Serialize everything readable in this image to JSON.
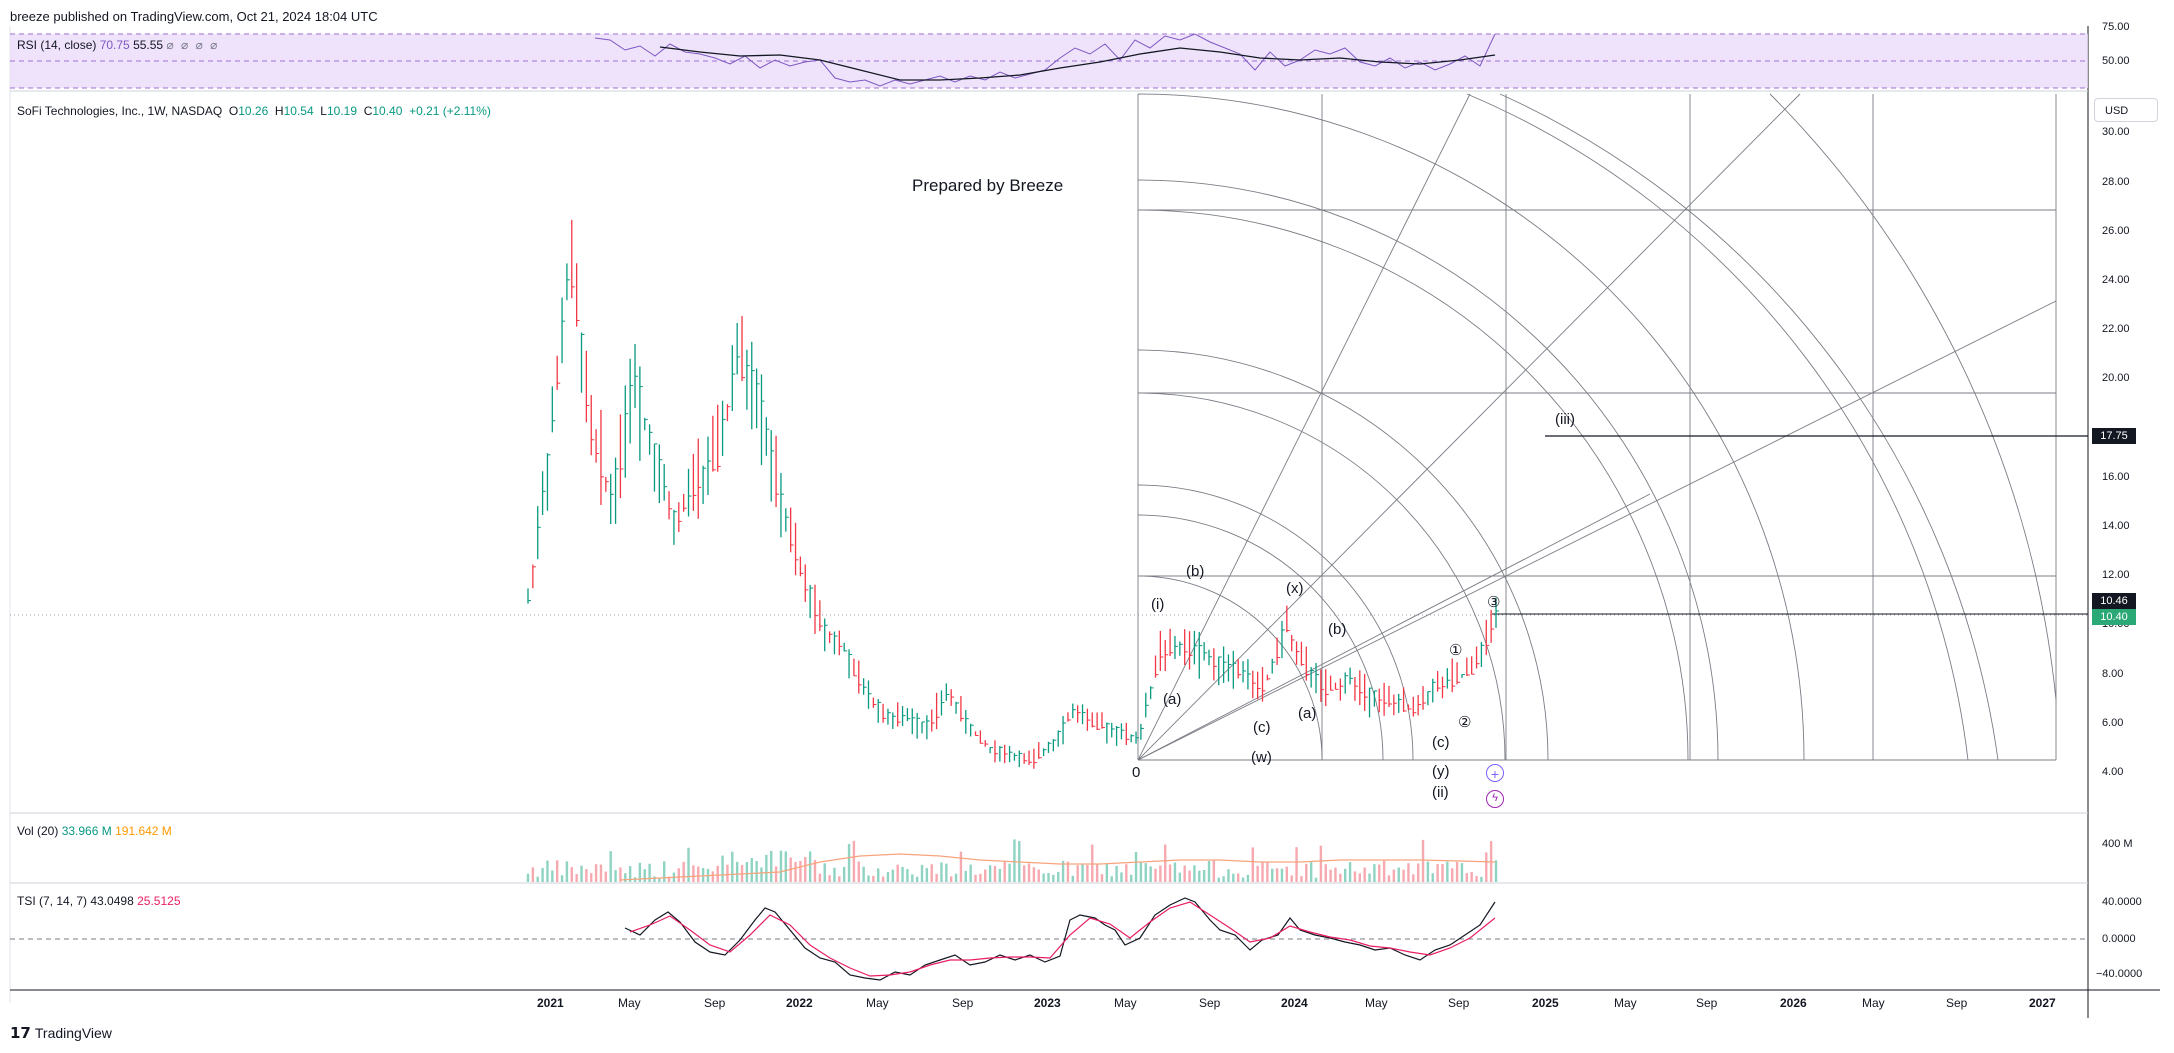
{
  "header": {
    "publisher": "breeze published on TradingView.com, Oct 21, 2024 18:04 UTC"
  },
  "rsi": {
    "label": "RSI (14, close)",
    "value1": "70.75",
    "value2": "55.55",
    "icons": "⌀ ⌀ ⌀ ⌀",
    "axis": [
      "75.00",
      "50.00"
    ]
  },
  "price": {
    "symbol": "SoFi Technologies, Inc., 1W, NASDAQ",
    "o_label": "O",
    "o_val": "10.26",
    "h_label": "H",
    "h_val": "10.54",
    "l_label": "L",
    "l_val": "10.19",
    "c_label": "C",
    "c_val": "10.40",
    "chg": "+0.21 (+2.11%)",
    "currency": "USD",
    "badge_target": "17.75",
    "badge_last": "10.46",
    "badge_close": "10.40",
    "note": "Prepared by Breeze",
    "origin_label": "0"
  },
  "volume": {
    "label": "Vol (20)",
    "v1": "33.966 M",
    "v2": "191.642 M",
    "axis": "400 M"
  },
  "tsi": {
    "label": "TSI (7, 14, 7)",
    "v1": "43.0498",
    "v2": "25.5125",
    "axis": [
      "40.0000",
      "0.0000",
      "−40.0000"
    ]
  },
  "footer": {
    "brand": "TradingView"
  },
  "waves": [
    "(i)",
    "(b)",
    "(a)",
    "(x)",
    "(c)",
    "(a)",
    "(w)",
    "(b)",
    "(c)",
    "(y)",
    "(ii)",
    "①",
    "②",
    "③",
    "(iii)"
  ],
  "colors": {
    "up": "#089981",
    "down": "#f23645",
    "rsi_band": "#ead9fb",
    "tsi_signal": "#e91e63",
    "vol_ma": "#f7a47c"
  },
  "chart_data": {
    "type": "line",
    "title": "SoFi Technologies, Inc., 1W, NASDAQ",
    "xlabel": "",
    "ylabel": "",
    "x_ticks": [
      "2021",
      "May",
      "Sep",
      "2022",
      "May",
      "Sep",
      "2023",
      "May",
      "Sep",
      "2024",
      "May",
      "Sep",
      "2025",
      "May",
      "Sep",
      "2026",
      "May",
      "Sep",
      "2027"
    ],
    "y_ticks": [
      "4.00",
      "6.00",
      "8.00",
      "10.00",
      "12.00",
      "14.00",
      "16.00",
      "18.00",
      "20.00",
      "22.00",
      "24.00",
      "26.00",
      "28.00",
      "30.00"
    ],
    "ylim": [
      3.2,
      32
    ],
    "series": [
      {
        "name": "SoFi Technologies, Inc.",
        "x": [
          "2020-12",
          "2021-01",
          "2021-02",
          "2021-03",
          "2021-04",
          "2021-05",
          "2021-06",
          "2021-07",
          "2021-08",
          "2021-09",
          "2021-10",
          "2021-11",
          "2021-12",
          "2022-01",
          "2022-02",
          "2022-03",
          "2022-04",
          "2022-05",
          "2022-06",
          "2022-07",
          "2022-08",
          "2022-09",
          "2022-10",
          "2022-11",
          "2022-12",
          "2023-01",
          "2023-02",
          "2023-03",
          "2023-04",
          "2023-05",
          "2023-06",
          "2023-07",
          "2023-08",
          "2023-09",
          "2023-10",
          "2023-11",
          "2023-12",
          "2024-01",
          "2024-02",
          "2024-03",
          "2024-04",
          "2024-05",
          "2024-06",
          "2024-07",
          "2024-08",
          "2024-09",
          "2024-10"
        ],
        "y": [
          11,
          17,
          25,
          18,
          15,
          20,
          17,
          14,
          16,
          17,
          21,
          19,
          15,
          12,
          10,
          9,
          7.3,
          6.3,
          6.2,
          5.9,
          7.3,
          5.8,
          5.0,
          4.7,
          4.5,
          5.3,
          6.6,
          6.0,
          5.7,
          5.3,
          8.9,
          9.1,
          8.9,
          8.4,
          8.0,
          7.5,
          10.0,
          8.2,
          7.3,
          7.8,
          7.2,
          6.9,
          6.6,
          7.5,
          7.8,
          8.3,
          10.4
        ]
      }
    ],
    "levels": [
      17.75,
      10.46,
      10.4
    ],
    "annotations": [
      "(i)",
      "(b)",
      "(a)",
      "(x)",
      "(c)",
      "(a)",
      "(w)",
      "(b)",
      "(c)",
      "(y)",
      "(ii)",
      "①",
      "②",
      "③",
      "(iii)",
      "0",
      "Prepared by Breeze"
    ]
  }
}
